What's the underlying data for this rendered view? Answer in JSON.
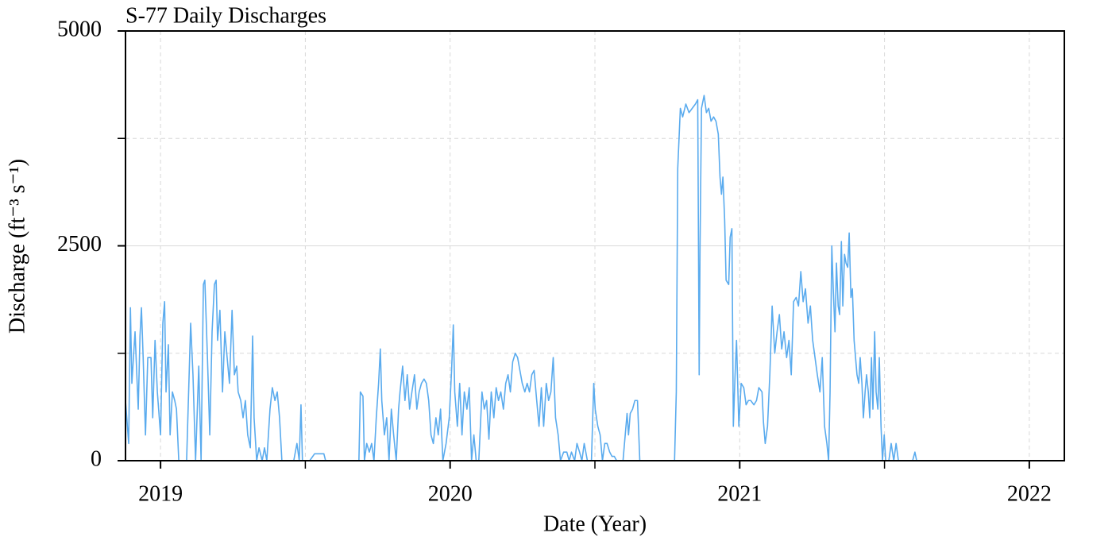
{
  "chart_data": {
    "type": "line",
    "title": "S-77 Daily Discharges",
    "x_label": "Date (Year)",
    "y_label": "Discharge (ft⁻³ s⁻¹)",
    "x": [
      2018.879,
      2018.89,
      2018.896,
      2018.901,
      2018.912,
      2018.923,
      2018.929,
      2018.934,
      2018.94,
      2018.948,
      2018.956,
      2018.967,
      2018.973,
      2018.981,
      2018.989,
      2019.0,
      2019.008,
      2019.014,
      2019.019,
      2019.027,
      2019.033,
      2019.041,
      2019.049,
      2019.055,
      2019.063,
      2019.077,
      2019.09,
      2019.104,
      2019.112,
      2019.121,
      2019.132,
      2019.14,
      2019.148,
      2019.153,
      2019.162,
      2019.17,
      2019.178,
      2019.186,
      2019.192,
      2019.197,
      2019.205,
      2019.214,
      2019.222,
      2019.23,
      2019.238,
      2019.247,
      2019.255,
      2019.263,
      2019.268,
      2019.277,
      2019.285,
      2019.293,
      2019.301,
      2019.31,
      2019.318,
      2019.323,
      2019.332,
      2019.34,
      2019.351,
      2019.359,
      2019.367,
      2019.378,
      2019.386,
      2019.395,
      2019.403,
      2019.411,
      2019.419,
      2019.433,
      2019.46,
      2019.471,
      2019.479,
      2019.485,
      2019.49,
      2019.515,
      2019.532,
      2019.542,
      2019.564,
      2019.57,
      2019.597,
      2019.652,
      2019.685,
      2019.69,
      2019.699,
      2019.704,
      2019.712,
      2019.721,
      2019.729,
      2019.737,
      2019.745,
      2019.753,
      2019.759,
      2019.764,
      2019.773,
      2019.781,
      2019.789,
      2019.797,
      2019.805,
      2019.814,
      2019.822,
      2019.827,
      2019.836,
      2019.844,
      2019.852,
      2019.86,
      2019.868,
      2019.877,
      2019.885,
      2019.893,
      2019.901,
      2019.91,
      2019.918,
      2019.926,
      2019.934,
      2019.942,
      2019.951,
      2019.959,
      2019.967,
      2019.975,
      2019.986,
      2019.997,
      2020.005,
      2020.011,
      2020.016,
      2020.025,
      2020.033,
      2020.041,
      2020.049,
      2020.058,
      2020.066,
      2020.074,
      2020.082,
      2020.09,
      2020.099,
      2020.11,
      2020.118,
      2020.126,
      2020.134,
      2020.142,
      2020.151,
      2020.159,
      2020.167,
      2020.175,
      2020.184,
      2020.192,
      2020.2,
      2020.208,
      2020.216,
      2020.225,
      2020.233,
      2020.241,
      2020.249,
      2020.258,
      2020.266,
      2020.274,
      2020.282,
      2020.29,
      2020.299,
      2020.307,
      2020.315,
      2020.323,
      2020.332,
      2020.34,
      2020.348,
      2020.356,
      2020.364,
      2020.373,
      2020.381,
      2020.392,
      2020.403,
      2020.411,
      2020.419,
      2020.43,
      2020.438,
      2020.447,
      2020.455,
      2020.463,
      2020.474,
      2020.488,
      2020.496,
      2020.501,
      2020.51,
      2020.518,
      2020.526,
      2020.534,
      2020.542,
      2020.551,
      2020.559,
      2020.567,
      2020.575,
      2020.597,
      2020.611,
      2020.616,
      2020.622,
      2020.63,
      2020.638,
      2020.647,
      2020.655,
      2020.679,
      2020.775,
      2020.781,
      2020.786,
      2020.795,
      2020.803,
      2020.814,
      2020.825,
      2020.836,
      2020.847,
      2020.855,
      2020.86,
      2020.863,
      2020.868,
      2020.877,
      2020.885,
      2020.893,
      2020.901,
      2020.91,
      2020.918,
      2020.926,
      2020.932,
      2020.937,
      2020.942,
      2020.948,
      2020.953,
      2020.962,
      2020.967,
      2020.973,
      2020.978,
      2020.984,
      2020.989,
      2020.997,
      2021.005,
      2021.014,
      2021.022,
      2021.03,
      2021.038,
      2021.049,
      2021.058,
      2021.066,
      2021.077,
      2021.082,
      2021.088,
      2021.096,
      2021.104,
      2021.112,
      2021.121,
      2021.129,
      2021.137,
      2021.145,
      2021.153,
      2021.162,
      2021.17,
      2021.178,
      2021.186,
      2021.195,
      2021.203,
      2021.211,
      2021.219,
      2021.227,
      2021.236,
      2021.244,
      2021.252,
      2021.26,
      2021.268,
      2021.277,
      2021.285,
      2021.293,
      2021.301,
      2021.307,
      2021.312,
      2021.318,
      2021.323,
      2021.329,
      2021.334,
      2021.34,
      2021.345,
      2021.351,
      2021.356,
      2021.362,
      2021.367,
      2021.373,
      2021.378,
      2021.384,
      2021.389,
      2021.395,
      2021.4,
      2021.405,
      2021.411,
      2021.416,
      2021.422,
      2021.427,
      2021.433,
      2021.438,
      2021.444,
      2021.449,
      2021.455,
      2021.46,
      2021.466,
      2021.471,
      2021.477,
      2021.482,
      2021.488,
      2021.493,
      2021.499,
      2021.504,
      2021.515,
      2021.523,
      2021.532,
      2021.54,
      2021.548,
      2021.597,
      2021.605,
      2021.611,
      2021.625
    ],
    "values": [
      700,
      200,
      1780,
      900,
      1500,
      600,
      1450,
      1780,
      1200,
      300,
      1200,
      1200,
      500,
      1400,
      800,
      300,
      1600,
      1850,
      800,
      1350,
      300,
      800,
      700,
      600,
      0,
      0,
      0,
      1600,
      1000,
      0,
      1100,
      0,
      2050,
      2100,
      1200,
      300,
      1500,
      2050,
      2100,
      1400,
      1750,
      800,
      1500,
      1200,
      900,
      1750,
      1000,
      1100,
      800,
      700,
      500,
      700,
      300,
      150,
      1450,
      500,
      0,
      150,
      0,
      150,
      0,
      600,
      850,
      700,
      800,
      500,
      0,
      0,
      0,
      200,
      0,
      650,
      0,
      0,
      80,
      80,
      80,
      0,
      0,
      0,
      0,
      800,
      750,
      0,
      200,
      100,
      200,
      0,
      500,
      900,
      1300,
      700,
      300,
      500,
      0,
      600,
      300,
      0,
      600,
      800,
      1100,
      700,
      1000,
      600,
      800,
      1000,
      600,
      800,
      900,
      950,
      900,
      700,
      300,
      200,
      500,
      300,
      600,
      0,
      200,
      500,
      1050,
      1580,
      800,
      400,
      900,
      300,
      800,
      600,
      850,
      0,
      300,
      0,
      0,
      800,
      600,
      700,
      250,
      800,
      500,
      850,
      700,
      800,
      600,
      900,
      1000,
      800,
      1150,
      1250,
      1200,
      1050,
      900,
      800,
      900,
      800,
      1000,
      1050,
      700,
      400,
      850,
      400,
      900,
      700,
      800,
      1200,
      500,
      300,
      0,
      100,
      100,
      0,
      100,
      0,
      200,
      100,
      0,
      200,
      0,
      0,
      900,
      600,
      400,
      300,
      0,
      200,
      200,
      100,
      50,
      50,
      0,
      0,
      550,
      300,
      550,
      600,
      700,
      700,
      0,
      0,
      0,
      800,
      3400,
      4100,
      4000,
      4150,
      4050,
      4100,
      4150,
      4200,
      1000,
      2500,
      4100,
      4250,
      4050,
      4100,
      3950,
      4000,
      3950,
      3800,
      3300,
      3100,
      3300,
      2800,
      2100,
      2050,
      2600,
      2700,
      400,
      1000,
      1400,
      400,
      900,
      850,
      650,
      700,
      700,
      650,
      700,
      850,
      800,
      450,
      200,
      400,
      1000,
      1800,
      1250,
      1500,
      1700,
      1300,
      1500,
      1200,
      1400,
      1000,
      1850,
      1900,
      1800,
      2200,
      1850,
      2000,
      1600,
      1800,
      1400,
      1200,
      1000,
      800,
      1200,
      400,
      200,
      0,
      800,
      2500,
      2000,
      1500,
      2300,
      1800,
      1700,
      2550,
      1800,
      2400,
      2300,
      2250,
      2650,
      1900,
      2000,
      1400,
      1200,
      1000,
      900,
      1200,
      900,
      500,
      800,
      1000,
      800,
      500,
      1200,
      600,
      1500,
      800,
      600,
      1200,
      400,
      0,
      300,
      0,
      0,
      200,
      0,
      200,
      0,
      0,
      100,
      0,
      0
    ],
    "color": "#5aabee",
    "xlim": [
      2018.879,
      2022.121
    ],
    "ylim": [
      0,
      5000
    ],
    "xticks": [
      2019,
      2020,
      2021,
      2022
    ],
    "yticks": [
      0,
      2500,
      5000
    ],
    "x_minor_ticks": [
      2019.5,
      2020.5,
      2021.5
    ],
    "y_minor_ticks": [
      1250,
      3750
    ],
    "grid": true
  }
}
